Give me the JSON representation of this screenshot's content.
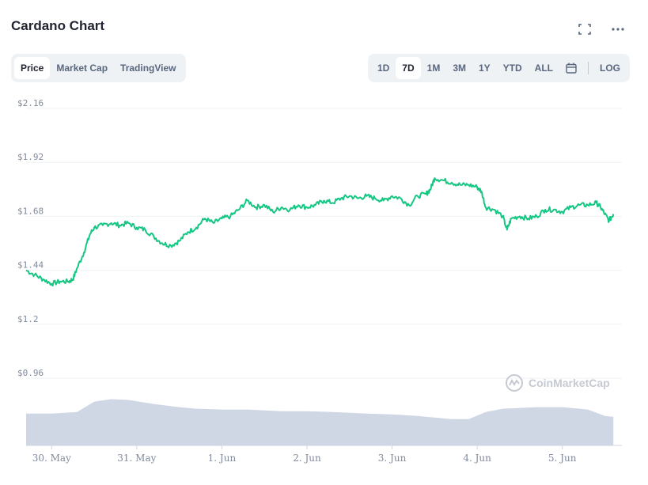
{
  "header": {
    "title": "Cardano Chart",
    "fullscreen_icon": "fullscreen-icon",
    "more_icon": "more-icon"
  },
  "view_tabs": [
    {
      "label": "Price",
      "active": true
    },
    {
      "label": "Market Cap",
      "active": false
    },
    {
      "label": "TradingView",
      "active": false
    }
  ],
  "range_tabs": [
    {
      "label": "1D",
      "active": false
    },
    {
      "label": "7D",
      "active": true
    },
    {
      "label": "1M",
      "active": false
    },
    {
      "label": "3M",
      "active": false
    },
    {
      "label": "1Y",
      "active": false
    },
    {
      "label": "YTD",
      "active": false
    },
    {
      "label": "ALL",
      "active": false
    }
  ],
  "calendar_icon": "calendar-icon",
  "log_label": "LOG",
  "watermark": "CoinMarketCap",
  "colors": {
    "line": "#16c784",
    "volume": "#cfd6e4",
    "grid": "#eff2f5",
    "axis_text": "#808a9d"
  },
  "chart_data": {
    "type": "line",
    "title": "",
    "xlabel": "",
    "ylabel": "",
    "yticks": [
      0.96,
      1.2,
      1.44,
      1.68,
      1.92,
      2.16
    ],
    "ytick_labels": [
      "$0.96",
      "$1.2",
      "$1.44",
      "$1.68",
      "$1.92",
      "$2.16"
    ],
    "ylim": [
      0.96,
      2.16
    ],
    "xlim": [
      0,
      7
    ],
    "xtick_labels": [
      "30. May",
      "31. May",
      "1. Jun",
      "2. Jun",
      "3. Jun",
      "4. Jun",
      "5. Jun"
    ],
    "xticks": [
      0.3,
      1.3,
      2.3,
      3.3,
      4.3,
      5.3,
      6.3
    ],
    "grid": true,
    "series": [
      {
        "values": [
          [
            0.0,
            1.44
          ],
          [
            0.1,
            1.42
          ],
          [
            0.2,
            1.4
          ],
          [
            0.3,
            1.38
          ],
          [
            0.4,
            1.39
          ],
          [
            0.5,
            1.39
          ],
          [
            0.55,
            1.4
          ],
          [
            0.6,
            1.45
          ],
          [
            0.68,
            1.52
          ],
          [
            0.75,
            1.6
          ],
          [
            0.8,
            1.63
          ],
          [
            0.9,
            1.64
          ],
          [
            1.0,
            1.65
          ],
          [
            1.1,
            1.64
          ],
          [
            1.2,
            1.65
          ],
          [
            1.3,
            1.63
          ],
          [
            1.4,
            1.62
          ],
          [
            1.5,
            1.59
          ],
          [
            1.6,
            1.56
          ],
          [
            1.7,
            1.55
          ],
          [
            1.8,
            1.57
          ],
          [
            1.9,
            1.61
          ],
          [
            2.0,
            1.63
          ],
          [
            2.1,
            1.67
          ],
          [
            2.2,
            1.65
          ],
          [
            2.3,
            1.67
          ],
          [
            2.4,
            1.68
          ],
          [
            2.5,
            1.71
          ],
          [
            2.6,
            1.75
          ],
          [
            2.7,
            1.72
          ],
          [
            2.8,
            1.73
          ],
          [
            2.9,
            1.7
          ],
          [
            3.0,
            1.72
          ],
          [
            3.1,
            1.71
          ],
          [
            3.2,
            1.73
          ],
          [
            3.3,
            1.72
          ],
          [
            3.4,
            1.73
          ],
          [
            3.5,
            1.75
          ],
          [
            3.6,
            1.74
          ],
          [
            3.7,
            1.76
          ],
          [
            3.8,
            1.77
          ],
          [
            3.9,
            1.76
          ],
          [
            4.0,
            1.77
          ],
          [
            4.1,
            1.76
          ],
          [
            4.2,
            1.75
          ],
          [
            4.3,
            1.77
          ],
          [
            4.4,
            1.76
          ],
          [
            4.5,
            1.73
          ],
          [
            4.6,
            1.77
          ],
          [
            4.7,
            1.78
          ],
          [
            4.75,
            1.8
          ],
          [
            4.8,
            1.85
          ],
          [
            4.9,
            1.84
          ],
          [
            5.0,
            1.83
          ],
          [
            5.1,
            1.82
          ],
          [
            5.2,
            1.82
          ],
          [
            5.3,
            1.81
          ],
          [
            5.35,
            1.79
          ],
          [
            5.4,
            1.72
          ],
          [
            5.5,
            1.71
          ],
          [
            5.6,
            1.68
          ],
          [
            5.65,
            1.62
          ],
          [
            5.7,
            1.67
          ],
          [
            5.8,
            1.68
          ],
          [
            5.9,
            1.67
          ],
          [
            6.0,
            1.68
          ],
          [
            6.1,
            1.71
          ],
          [
            6.2,
            1.71
          ],
          [
            6.3,
            1.7
          ],
          [
            6.4,
            1.72
          ],
          [
            6.5,
            1.73
          ],
          [
            6.6,
            1.73
          ],
          [
            6.7,
            1.74
          ],
          [
            6.75,
            1.72
          ],
          [
            6.8,
            1.69
          ],
          [
            6.85,
            1.66
          ],
          [
            6.9,
            1.69
          ]
        ]
      }
    ],
    "volume": {
      "values": [
        [
          0.0,
          0.4
        ],
        [
          0.3,
          0.4
        ],
        [
          0.6,
          0.42
        ],
        [
          0.8,
          0.55
        ],
        [
          1.0,
          0.58
        ],
        [
          1.2,
          0.57
        ],
        [
          1.5,
          0.52
        ],
        [
          1.8,
          0.48
        ],
        [
          2.0,
          0.46
        ],
        [
          2.3,
          0.45
        ],
        [
          2.6,
          0.45
        ],
        [
          3.0,
          0.43
        ],
        [
          3.3,
          0.43
        ],
        [
          3.6,
          0.42
        ],
        [
          4.0,
          0.4
        ],
        [
          4.3,
          0.39
        ],
        [
          4.6,
          0.37
        ],
        [
          4.8,
          0.35
        ],
        [
          5.0,
          0.33
        ],
        [
          5.2,
          0.33
        ],
        [
          5.4,
          0.42
        ],
        [
          5.6,
          0.46
        ],
        [
          5.8,
          0.47
        ],
        [
          6.0,
          0.48
        ],
        [
          6.3,
          0.48
        ],
        [
          6.6,
          0.45
        ],
        [
          6.8,
          0.37
        ],
        [
          6.9,
          0.36
        ]
      ]
    }
  }
}
